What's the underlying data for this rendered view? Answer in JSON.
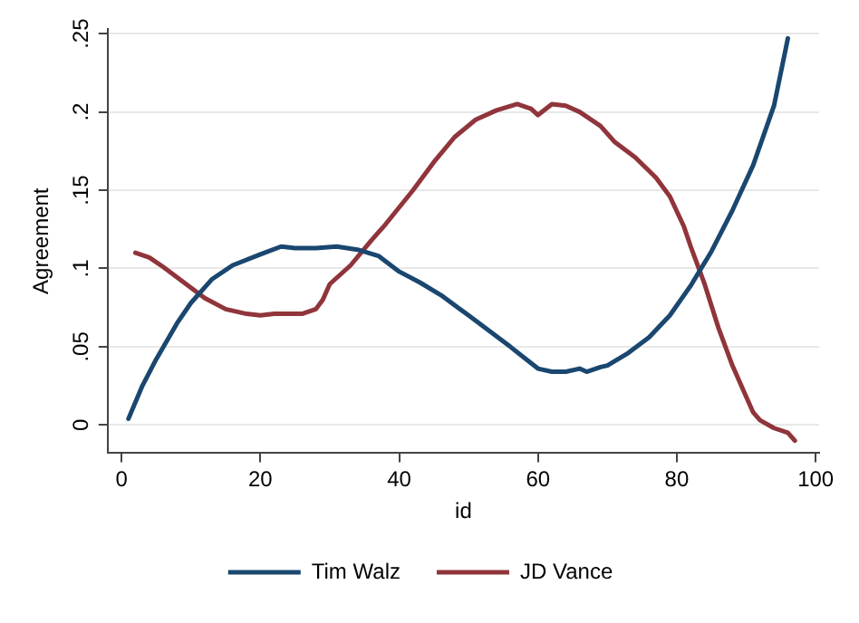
{
  "chart_data": {
    "type": "line",
    "xlabel": "id",
    "ylabel": "Agreement",
    "xlim": [
      -2,
      100.5
    ],
    "xticks": [
      0,
      20,
      40,
      60,
      80,
      100
    ],
    "ylim": [
      -0.018,
      0.253
    ],
    "yticks": [
      {
        "value": 0,
        "label": "0"
      },
      {
        "value": 0.05,
        "label": ".05"
      },
      {
        "value": 0.1,
        "label": ".1"
      },
      {
        "value": 0.15,
        "label": ".15"
      },
      {
        "value": 0.2,
        "label": ".2"
      },
      {
        "value": 0.25,
        "label": ".25"
      }
    ],
    "grid": "y",
    "legend": "bottom",
    "marker": "none",
    "line_style": "solid",
    "series": [
      {
        "name": "Tim Walz",
        "color": "#1a476f",
        "x": [
          1,
          3,
          5,
          8,
          10,
          13,
          16,
          20,
          23,
          25,
          28,
          31,
          34,
          37,
          40,
          43,
          46,
          50,
          53,
          56,
          58,
          60,
          62,
          64,
          66,
          67,
          69,
          70,
          73,
          76,
          79,
          82,
          85,
          88,
          91,
          94,
          96
        ],
        "values": [
          0.004,
          0.025,
          0.042,
          0.065,
          0.078,
          0.093,
          0.102,
          0.109,
          0.114,
          0.113,
          0.113,
          0.114,
          0.112,
          0.108,
          0.098,
          0.091,
          0.083,
          0.07,
          0.06,
          0.05,
          0.043,
          0.036,
          0.034,
          0.034,
          0.036,
          0.034,
          0.037,
          0.038,
          0.046,
          0.056,
          0.07,
          0.089,
          0.111,
          0.137,
          0.166,
          0.204,
          0.247
        ]
      },
      {
        "name": "JD Vance",
        "color": "#90353b",
        "x": [
          2,
          4,
          6,
          9,
          12,
          15,
          18,
          20,
          22,
          26,
          28,
          29,
          30,
          33,
          36,
          38,
          42,
          45,
          48,
          51,
          54,
          57,
          59,
          60,
          62,
          64,
          66,
          69,
          71,
          74,
          77,
          79,
          81,
          82,
          84,
          86,
          88,
          90,
          91,
          92,
          94,
          96,
          97
        ],
        "values": [
          0.11,
          0.107,
          0.101,
          0.091,
          0.081,
          0.074,
          0.071,
          0.07,
          0.071,
          0.071,
          0.074,
          0.08,
          0.09,
          0.102,
          0.118,
          0.128,
          0.15,
          0.168,
          0.184,
          0.195,
          0.201,
          0.205,
          0.202,
          0.198,
          0.205,
          0.204,
          0.2,
          0.191,
          0.181,
          0.171,
          0.158,
          0.146,
          0.127,
          0.114,
          0.09,
          0.062,
          0.038,
          0.018,
          0.008,
          0.003,
          -0.002,
          -0.005,
          -0.01
        ]
      }
    ]
  }
}
